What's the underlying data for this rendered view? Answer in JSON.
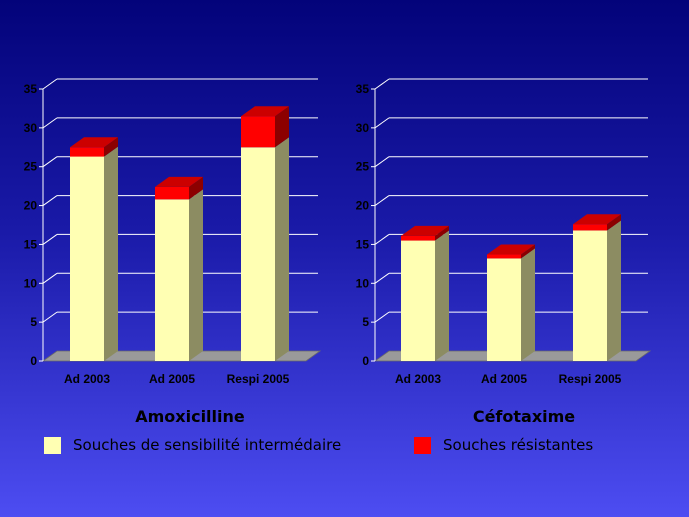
{
  "chart_data": [
    {
      "type": "bar",
      "stacked": true,
      "title": "Amoxicilline",
      "categories": [
        "Ad 2003",
        "Ad 2005",
        "Respi 2005"
      ],
      "series": [
        {
          "name": "Souches de sensibilité intermédaire",
          "color": "#ffffb3",
          "values": [
            26.3,
            20.8,
            27.5
          ]
        },
        {
          "name": "Souches résistantes",
          "color": "#ff0000",
          "values": [
            1.2,
            1.6,
            4.0
          ]
        }
      ],
      "ylim": [
        0,
        35
      ],
      "yticks": [
        "0",
        "5",
        "10",
        "15",
        "20",
        "25",
        "30",
        "35"
      ],
      "grid": true
    },
    {
      "type": "bar",
      "stacked": true,
      "title": "Céfotaxime",
      "categories": [
        "Ad 2003",
        "Ad 2005",
        "Respi 2005"
      ],
      "series": [
        {
          "name": "Souches de sensibilité intermédaire",
          "color": "#ffffb3",
          "values": [
            15.5,
            13.2,
            16.8
          ]
        },
        {
          "name": "Souches résistantes",
          "color": "#ff0000",
          "values": [
            0.6,
            0.5,
            0.8
          ]
        }
      ],
      "ylim": [
        0,
        35
      ],
      "yticks": [
        "0",
        "5",
        "10",
        "15",
        "20",
        "25",
        "30",
        "35"
      ],
      "grid": true
    }
  ],
  "legend": [
    {
      "label": "Souches de sensibilité intermédaire",
      "color": "#ffffb3"
    },
    {
      "label": "Souches résistantes",
      "color": "#ff0000"
    }
  ]
}
